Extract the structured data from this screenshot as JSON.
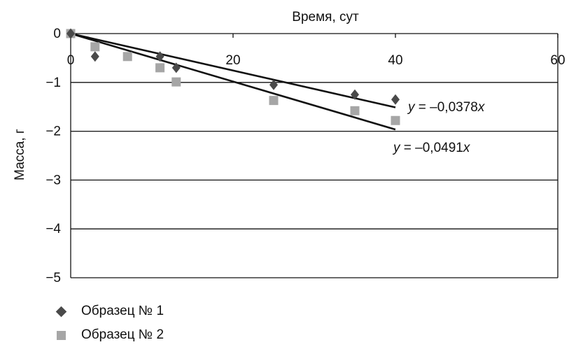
{
  "chart_data": {
    "type": "scatter",
    "xlabel": "Время, сут",
    "ylabel": "Масса, г",
    "xlim": [
      0,
      60
    ],
    "ylim": [
      -5,
      0
    ],
    "x_ticks": [
      "0",
      "20",
      "40",
      "60"
    ],
    "y_ticks": [
      "0",
      "−1",
      "−2",
      "−3",
      "−4",
      "−5"
    ],
    "grid": "horizontal",
    "legend_position": "bottom-left",
    "series": [
      {
        "name": "Образец № 1",
        "marker": "diamond",
        "color": "#4a4a4a",
        "points": [
          [
            0,
            0
          ],
          [
            3,
            -0.47
          ],
          [
            11,
            -0.47
          ],
          [
            13,
            -0.7
          ],
          [
            25,
            -1.05
          ],
          [
            35,
            -1.25
          ],
          [
            40,
            -1.35
          ]
        ]
      },
      {
        "name": "Образец № 2",
        "marker": "square",
        "color": "#a6a6a6",
        "points": [
          [
            0,
            0
          ],
          [
            3,
            -0.27
          ],
          [
            7,
            -0.47
          ],
          [
            11,
            -0.7
          ],
          [
            13,
            -0.99
          ],
          [
            25,
            -1.37
          ],
          [
            35,
            -1.58
          ],
          [
            40,
            -1.78
          ]
        ]
      }
    ],
    "trendlines": [
      {
        "slope": -0.0378,
        "x_range": [
          0,
          40
        ],
        "label": "y = –0,0378x",
        "label_prefix": "y",
        "label_body": " = –0,0378",
        "label_suffix": "x"
      },
      {
        "slope": -0.0491,
        "x_range": [
          0,
          40
        ],
        "label": "y = –0,0491x",
        "label_prefix": "y",
        "label_body": " = –0,0491",
        "label_suffix": "x"
      }
    ],
    "colors": {
      "axis": "#111111",
      "trendline": "#111111"
    }
  }
}
